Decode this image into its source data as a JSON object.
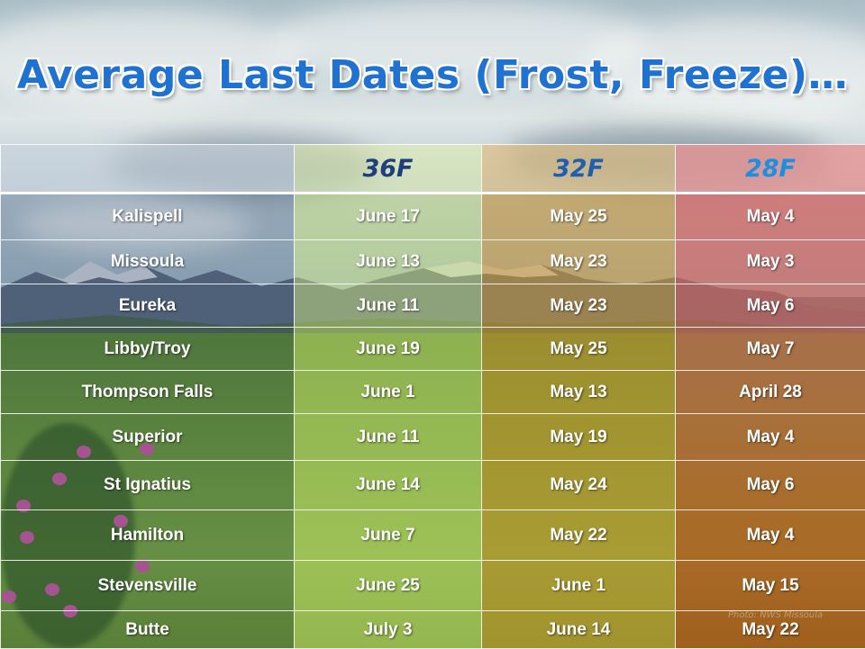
{
  "title": "Average Last Dates (Frost, Freeze)…",
  "columns": [
    {
      "label": "36F",
      "color": "#1f3f7a"
    },
    {
      "label": "32F",
      "color": "#1f5fb0"
    },
    {
      "label": "28F",
      "color": "#1c8fe0"
    }
  ],
  "rows": [
    {
      "location": "Kalispell",
      "t36": "June 17",
      "t32": "May 25",
      "t28": "May 4"
    },
    {
      "location": "Missoula",
      "t36": "June 13",
      "t32": "May 23",
      "t28": "May 3"
    },
    {
      "location": "Eureka",
      "t36": "June 11",
      "t32": "May 23",
      "t28": "May 6"
    },
    {
      "location": "Libby/Troy",
      "t36": "June 19",
      "t32": "May 25",
      "t28": "May 7"
    },
    {
      "location": "Thompson Falls",
      "t36": "June 1",
      "t32": "May 13",
      "t28": "April 28"
    },
    {
      "location": "Superior",
      "t36": "June 11",
      "t32": "May 19",
      "t28": "May 4"
    },
    {
      "location": "St Ignatius",
      "t36": "June 14",
      "t32": "May 24",
      "t28": "May 6"
    },
    {
      "location": "Hamilton",
      "t36": "June 7",
      "t32": "May 22",
      "t28": "May 4"
    },
    {
      "location": "Stevensville",
      "t36": "June 25",
      "t32": "June 1",
      "t28": "May 15"
    },
    {
      "location": "Butte",
      "t36": "July 3",
      "t32": "June 14",
      "t28": "May 22"
    }
  ],
  "watermark": "Photo: NWS Missoula"
}
